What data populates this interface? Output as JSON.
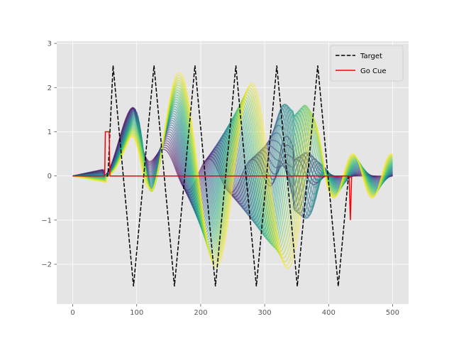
{
  "chart_data": {
    "type": "line",
    "style": "ggplot",
    "xlim": [
      -25,
      525
    ],
    "ylim": [
      -2.9,
      3.05
    ],
    "xticks": [
      0,
      100,
      200,
      300,
      400,
      500
    ],
    "yticks": [
      -2,
      -1,
      0,
      1,
      2,
      3
    ],
    "grid": true,
    "legend": {
      "placement": "top-right",
      "entries": [
        {
          "label": "Target",
          "color": "#000000",
          "dash": "dashed"
        },
        {
          "label": "Go Cue",
          "color": "#ff0000",
          "dash": "solid"
        }
      ]
    },
    "series": [
      {
        "name": "Target",
        "color": "#000000",
        "dash": "dashed",
        "x": [
          0,
          55,
          63,
          79,
          95,
          111,
          127,
          143,
          159,
          175,
          191,
          207,
          223,
          239,
          255,
          271,
          287,
          303,
          319,
          335,
          351,
          367,
          383,
          399,
          415,
          431,
          436
        ],
        "y": [
          0,
          0,
          2.5,
          0,
          -2.5,
          0,
          2.5,
          0,
          -2.5,
          0,
          2.5,
          0,
          -2.5,
          0,
          2.5,
          0,
          -2.5,
          0,
          2.5,
          0,
          -2.5,
          0,
          2.5,
          0,
          -2.5,
          0,
          0
        ]
      },
      {
        "name": "Go Cue",
        "color": "#ff0000",
        "dash": "solid",
        "x": [
          0,
          50,
          51,
          57,
          58,
          78,
          80,
          430,
          432,
          434,
          436
        ],
        "y": [
          0,
          0,
          1,
          1,
          0,
          0,
          0,
          0,
          0,
          -1,
          0
        ]
      }
    ],
    "trajectories": {
      "count": 34,
      "colormap": "viridis",
      "description_values": {
        "x_end": 500,
        "peak_y_first_bump": 1.6,
        "max_y": 2.85,
        "min_y": -2.6
      }
    }
  }
}
